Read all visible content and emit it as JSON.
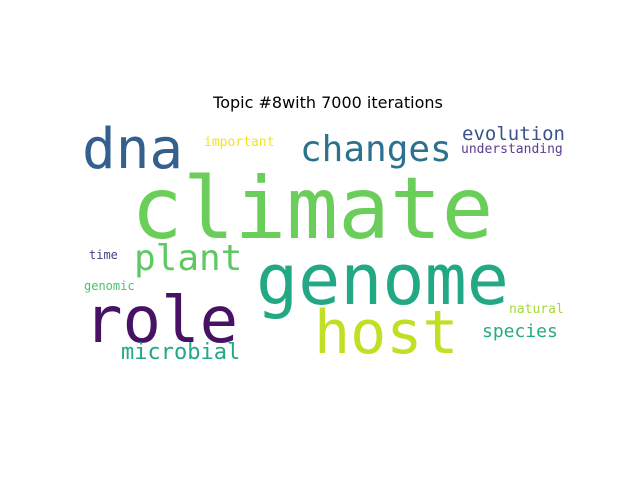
{
  "chart_data": {
    "type": "wordcloud",
    "title": "Topic #8with 7000 iterations",
    "words": [
      {
        "text": "climate",
        "color": "#6cce5a"
      },
      {
        "text": "genome",
        "color": "#22a884"
      },
      {
        "text": "role",
        "color": "#471164"
      },
      {
        "text": "host",
        "color": "#c2df23"
      },
      {
        "text": "dna",
        "color": "#355f8d"
      },
      {
        "text": "changes",
        "color": "#2c728e"
      },
      {
        "text": "plant",
        "color": "#5ec962"
      },
      {
        "text": "microbial",
        "color": "#22a884"
      },
      {
        "text": "evolution",
        "color": "#3b528b"
      },
      {
        "text": "species",
        "color": "#25ab82"
      },
      {
        "text": "understanding",
        "color": "#5b3c8f"
      },
      {
        "text": "important",
        "color": "#f2e51d"
      },
      {
        "text": "natural",
        "color": "#a5db36"
      },
      {
        "text": "time",
        "color": "#414487"
      },
      {
        "text": "genomic",
        "color": "#4ac16d"
      }
    ]
  }
}
